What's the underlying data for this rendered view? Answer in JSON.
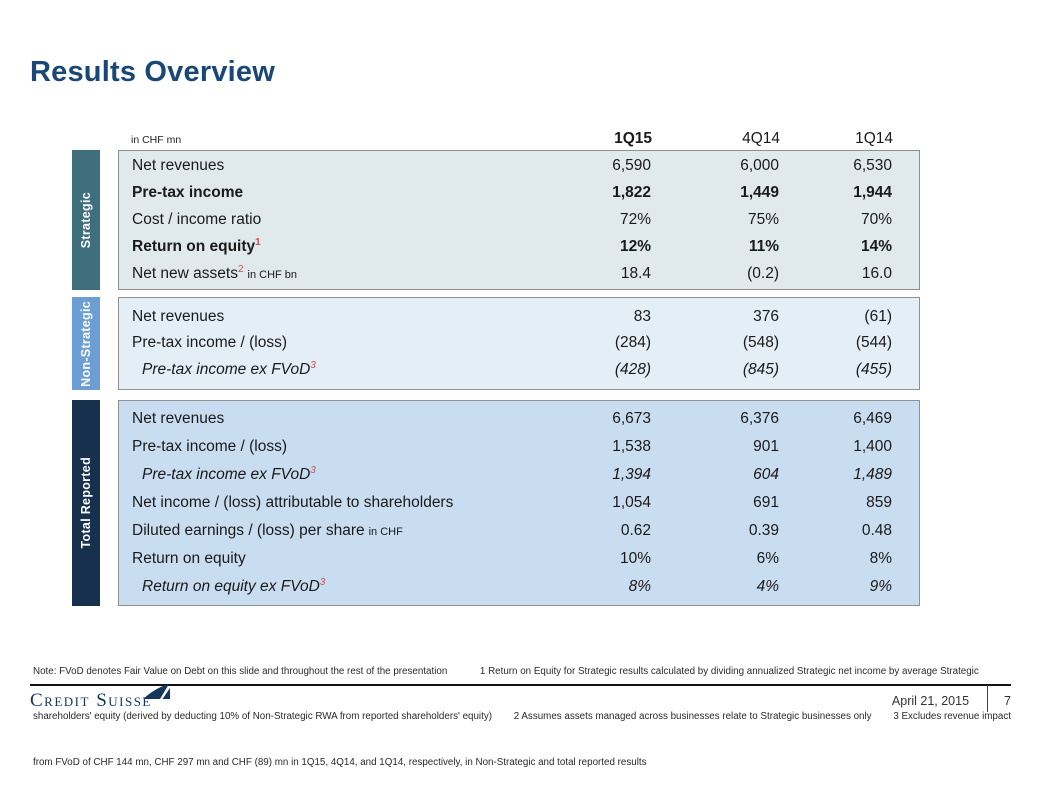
{
  "title": "Results Overview",
  "table": {
    "unit_label": "in CHF mn",
    "columns": [
      "1Q15",
      "4Q14",
      "1Q14"
    ],
    "sections": [
      {
        "label": "Strategic",
        "sidebar_color": "#3f6f7d",
        "bg_color": "#e0e9eb",
        "rows": [
          {
            "label": "Net revenues",
            "style": "normal",
            "values": [
              "6,590",
              "6,000",
              "6,530"
            ]
          },
          {
            "label": "Pre-tax income",
            "style": "bold",
            "values": [
              "1,822",
              "1,449",
              "1,944"
            ]
          },
          {
            "label": "Cost / income ratio",
            "style": "normal",
            "values": [
              "72%",
              "75%",
              "70%"
            ]
          },
          {
            "label": "Return on equity",
            "sup": "1",
            "style": "bold",
            "values": [
              "12%",
              "11%",
              "14%"
            ]
          },
          {
            "label": "Net new assets",
            "sup": "2",
            "suffix": "in CHF bn",
            "style": "normal",
            "values": [
              "18.4",
              "(0.2)",
              "16.0"
            ]
          }
        ]
      },
      {
        "label": "Non-Strategic",
        "sidebar_color": "#6c9dd3",
        "bg_color": "#e3eef7",
        "rows": [
          {
            "label": "Net revenues",
            "style": "normal",
            "values": [
              "83",
              "376",
              "(61)"
            ]
          },
          {
            "label": "Pre-tax income / (loss)",
            "style": "normal",
            "values": [
              "(284)",
              "(548)",
              "(544)"
            ]
          },
          {
            "label": "Pre-tax income ex FVoD",
            "sup": "3",
            "style": "italic",
            "values": [
              "(428)",
              "(845)",
              "(455)"
            ]
          }
        ]
      },
      {
        "label": "Total Reported",
        "sidebar_color": "#17304e",
        "bg_color": "#c9ddf1",
        "rows": [
          {
            "label": "Net revenues",
            "style": "normal",
            "values": [
              "6,673",
              "6,376",
              "6,469"
            ]
          },
          {
            "label": "Pre-tax income / (loss)",
            "style": "normal",
            "values": [
              "1,538",
              "901",
              "1,400"
            ]
          },
          {
            "label": "Pre-tax income ex FVoD",
            "sup": "3",
            "style": "italic",
            "values": [
              "1,394",
              "604",
              "1,489"
            ]
          },
          {
            "label": "Net income / (loss) attributable to shareholders",
            "style": "normal",
            "values": [
              "1,054",
              "691",
              "859"
            ]
          },
          {
            "label": "Diluted earnings / (loss) per share",
            "suffix": "in CHF",
            "style": "normal",
            "values": [
              "0.62",
              "0.39",
              "0.48"
            ]
          },
          {
            "label": "Return on equity",
            "style": "normal",
            "values": [
              "10%",
              "6%",
              "8%"
            ]
          },
          {
            "label": "Return on equity ex FVoD",
            "sup": "3",
            "style": "italic",
            "values": [
              "8%",
              "4%",
              "9%"
            ]
          }
        ]
      }
    ]
  },
  "notes": {
    "lines": [
      "Note: FVoD denotes Fair Value on Debt on this slide and throughout the rest of the presentation            1 Return on Equity for Strategic results calculated by dividing annualized Strategic net income by average Strategic",
      "shareholders' equity (derived by deducting 10% of Non-Strategic RWA from reported shareholders' equity)        2 Assumes assets managed across businesses relate to Strategic businesses only        3 Excludes revenue impact",
      "from FVoD of CHF 144 mn, CHF 297 mn and CHF (89) mn in 1Q15, 4Q14, and 1Q14, respectively, in Non-Strategic and total reported results"
    ]
  },
  "footer": {
    "logo_text": "Credit Suisse",
    "logo_color": "#15365a",
    "date": "April 21, 2015",
    "page": "7"
  }
}
